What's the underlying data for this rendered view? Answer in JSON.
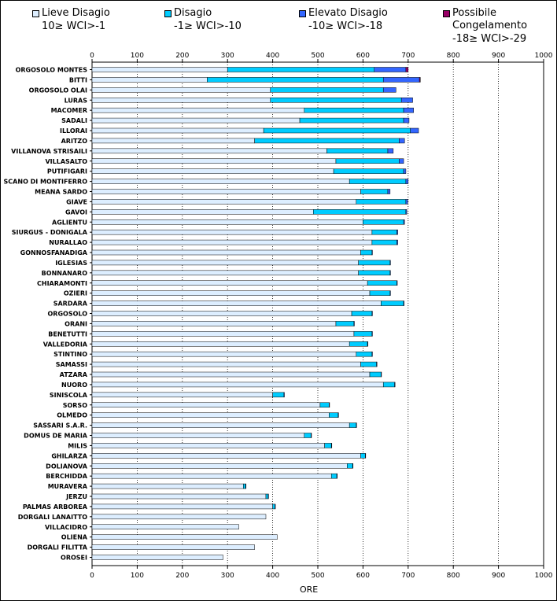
{
  "chart_data": {
    "type": "bar",
    "orientation": "horizontal",
    "stacked": true,
    "xlabel": "ORE",
    "xlim": [
      0,
      1000
    ],
    "xticks": [
      0,
      100,
      200,
      300,
      400,
      500,
      600,
      700,
      800,
      900,
      1000
    ],
    "grid": "vertical dotted",
    "legend_position": "top",
    "categories": [
      "ORGOSOLO MONTES",
      "BITTI",
      "ORGOSOLO OLAI",
      "LURAS",
      "MACOMER",
      "SADALI",
      "ILLORAI",
      "ARITZO",
      "VILLANOVA STRISAILI",
      "VILLASALTO",
      "PUTIFIGARI",
      "SCANO DI MONTIFERRO",
      "MEANA SARDO",
      "GIAVE",
      "GAVOI",
      "AGLIENTU",
      "SIURGUS - DONIGALA",
      "NURALLAO",
      "GONNOSFANADIGA",
      "IGLESIAS",
      "BONNANARO",
      "CHIARAMONTI",
      "OZIERI",
      "SARDARA",
      "ORGOSOLO",
      "ORANI",
      "BENETUTTI",
      "VALLEDORIA",
      "STINTINO",
      "SAMASSI",
      "ATZARA",
      "NUORO",
      "SINISCOLA",
      "SORSO",
      "OLMEDO",
      "SASSARI S.A.R.",
      "DOMUS DE MARIA",
      "MILIS",
      "GHILARZA",
      "DOLIANOVA",
      "BERCHIDDA",
      "MURAVERA",
      "JERZU",
      "PALMAS ARBOREA",
      "DORGALI LANAITTO",
      "VILLACIDRO",
      "OLIENA",
      "DORGALI FILITTA",
      "OROSEI"
    ],
    "series": [
      {
        "name": "Lieve Disagio",
        "range": "10≥ WCI>-1",
        "color": "#DDEEFF",
        "values": [
          300,
          255,
          395,
          395,
          470,
          460,
          380,
          360,
          520,
          540,
          535,
          570,
          595,
          585,
          490,
          600,
          620,
          620,
          595,
          590,
          590,
          610,
          615,
          640,
          575,
          540,
          580,
          570,
          585,
          595,
          615,
          645,
          400,
          505,
          525,
          570,
          470,
          515,
          595,
          565,
          530,
          335,
          385,
          400,
          385,
          325,
          410,
          360,
          290
        ]
      },
      {
        "name": "Disagio",
        "range": "-1≥ WCI>-10",
        "color": "#00CCFF",
        "values": [
          325,
          390,
          250,
          290,
          220,
          230,
          325,
          320,
          135,
          140,
          155,
          125,
          60,
          110,
          205,
          90,
          55,
          55,
          25,
          70,
          70,
          65,
          45,
          50,
          45,
          40,
          40,
          40,
          35,
          35,
          25,
          25,
          25,
          20,
          20,
          15,
          15,
          15,
          10,
          12,
          12,
          5,
          5,
          5,
          0,
          0,
          0,
          0,
          0
        ]
      },
      {
        "name": "Elevato Disagio",
        "range": "-10≥ WCI>-18",
        "color": "#3366FF",
        "values": [
          70,
          80,
          28,
          25,
          22,
          12,
          18,
          12,
          12,
          10,
          5,
          5,
          5,
          4,
          2,
          2,
          2,
          2,
          1,
          1,
          1,
          1,
          1,
          1,
          1,
          1,
          1,
          1,
          1,
          1,
          1,
          1,
          1,
          1,
          1,
          1,
          1,
          1,
          1,
          1,
          1,
          1,
          1,
          1,
          0,
          0,
          0,
          0,
          0
        ]
      },
      {
        "name": "Possibile Congelamento",
        "range": "-18≥ WCI>-29",
        "color": "#990066",
        "values": [
          5,
          2,
          0,
          0,
          0,
          0,
          0,
          0,
          0,
          0,
          0,
          0,
          0,
          0,
          0,
          0,
          0,
          0,
          0,
          0,
          0,
          0,
          0,
          0,
          0,
          0,
          0,
          0,
          0,
          0,
          0,
          0,
          0,
          0,
          0,
          0,
          0,
          0,
          0,
          0,
          0,
          0,
          0,
          0,
          0,
          0,
          0,
          0,
          0
        ]
      }
    ]
  }
}
